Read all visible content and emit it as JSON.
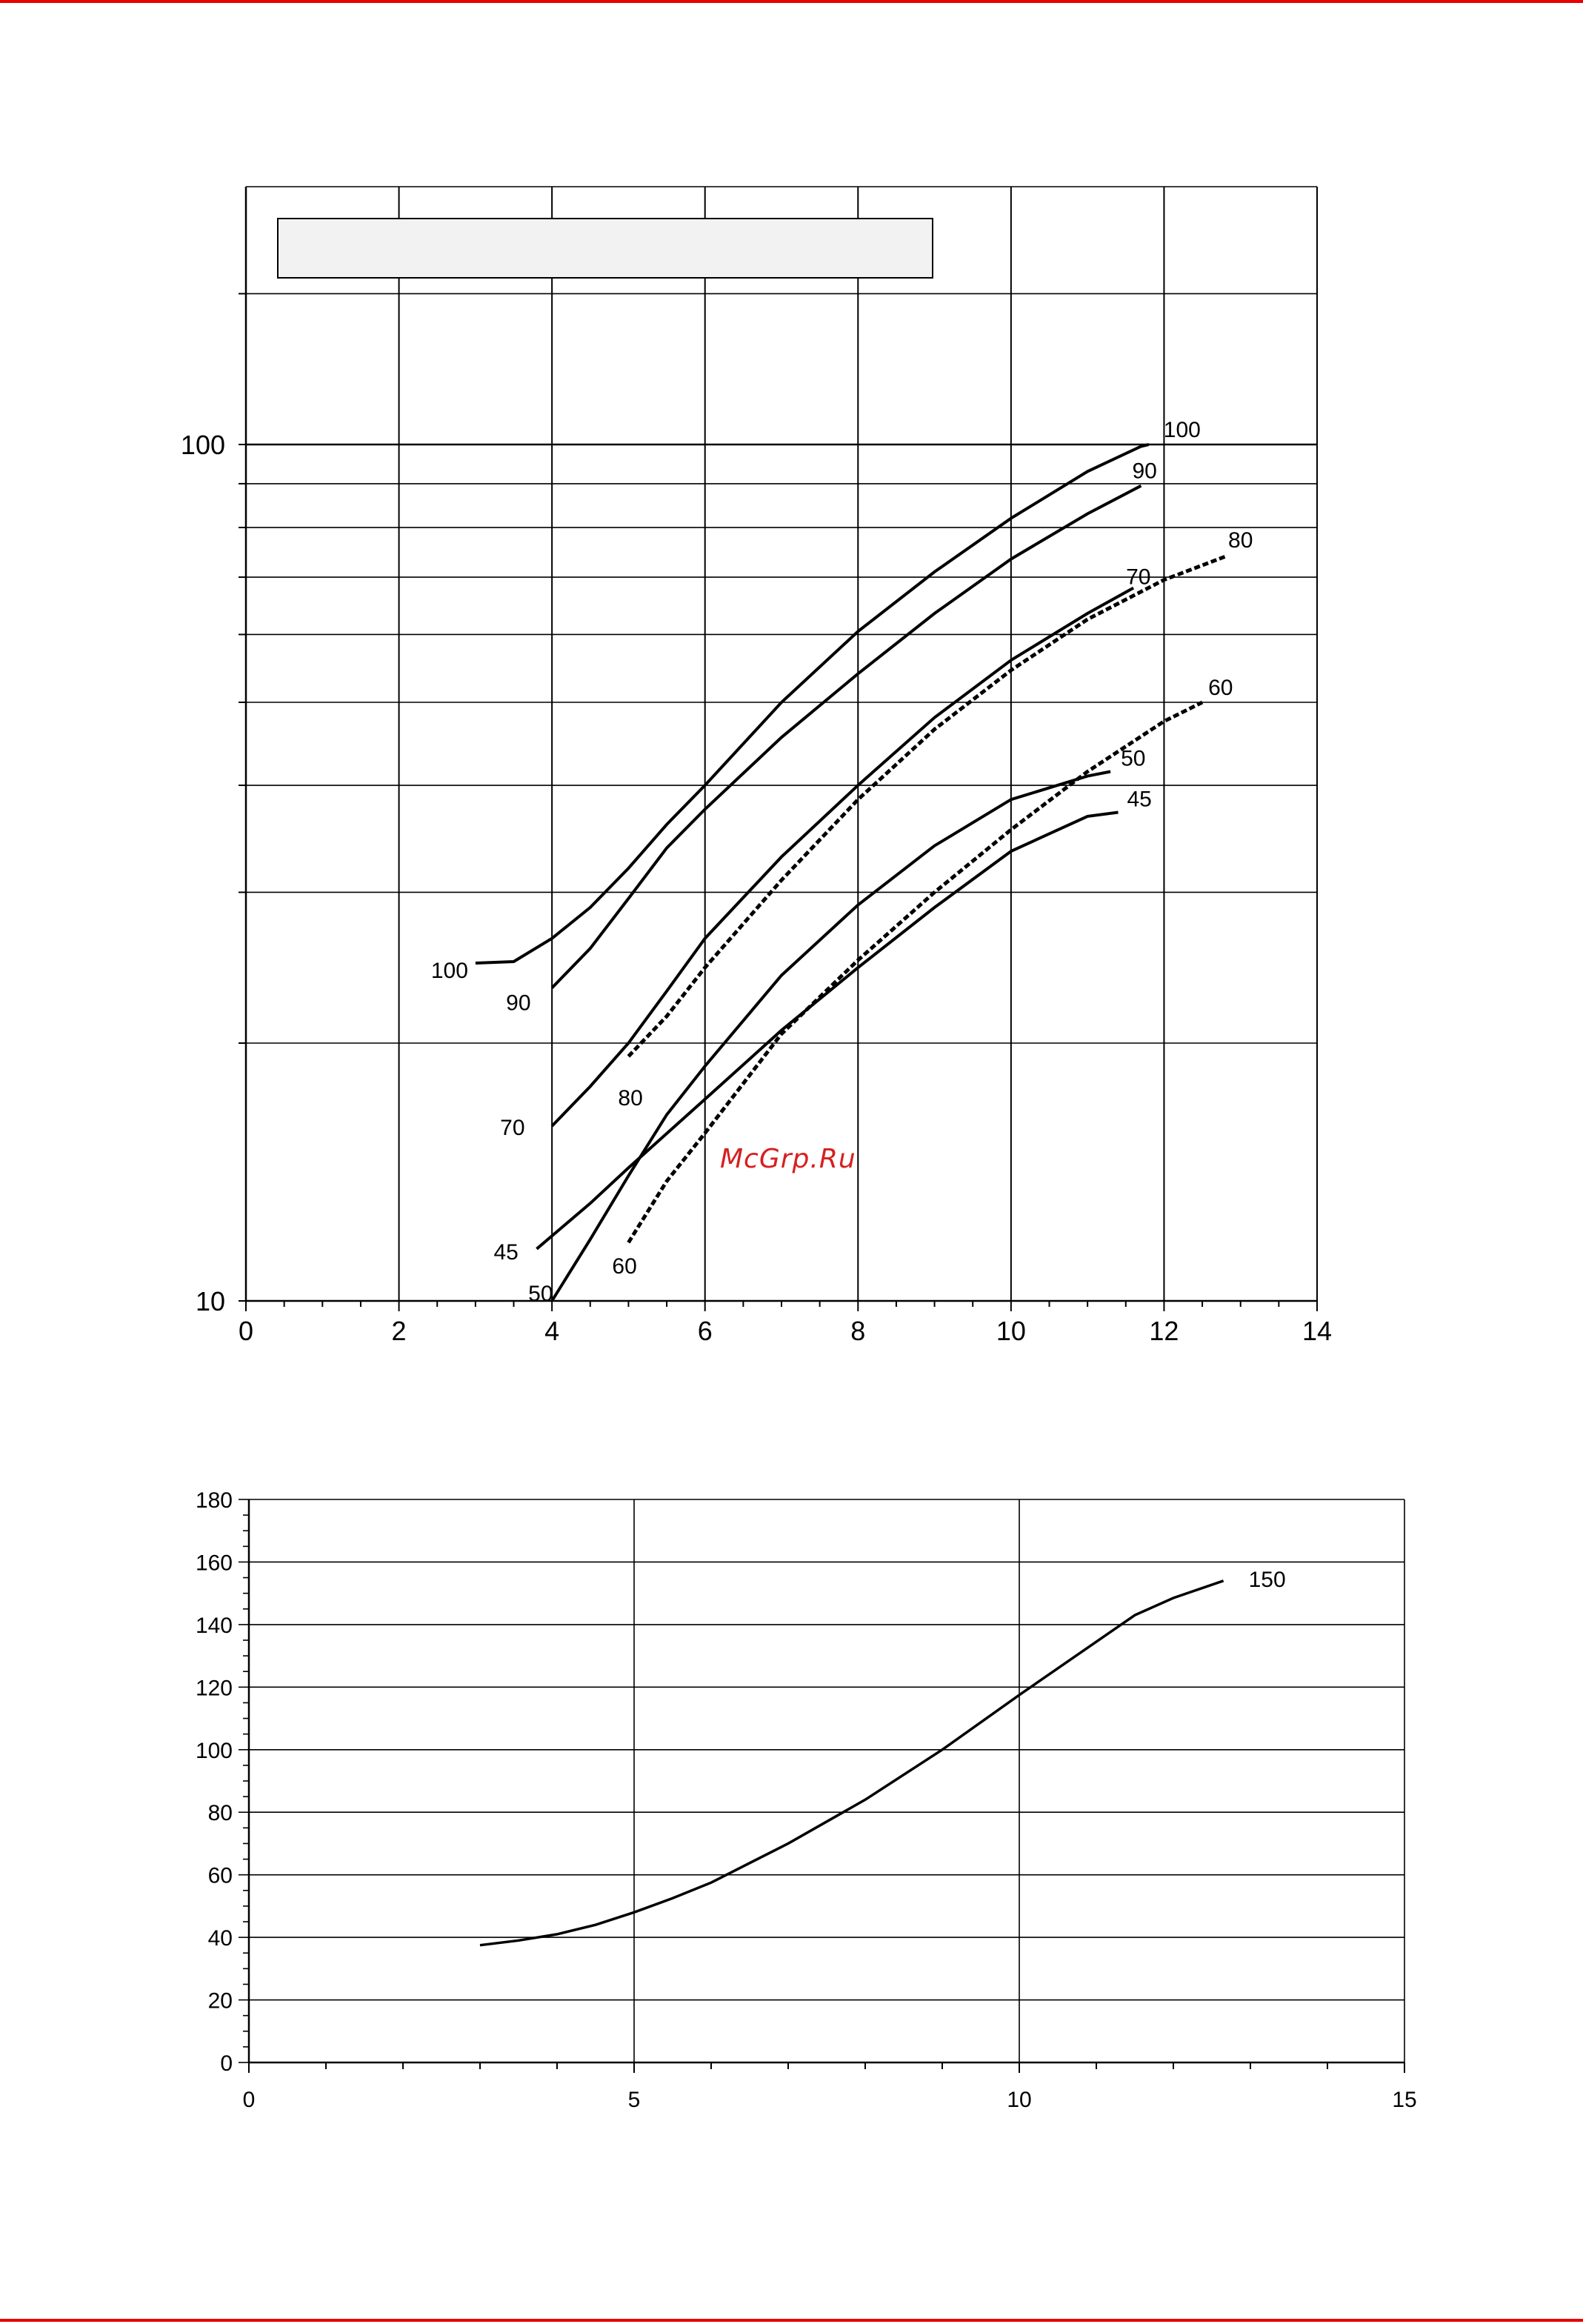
{
  "page": {
    "rule_color": "#e60000",
    "watermark": "McGrp.Ru",
    "watermark_color": "#d62020"
  },
  "chart_data": [
    {
      "type": "line",
      "yscale": "log",
      "xlim": [
        0,
        14
      ],
      "ylim": [
        10,
        180
      ],
      "xticks": [
        "0",
        "2",
        "4",
        "6",
        "8",
        "10",
        "12",
        "14"
      ],
      "yticks": [
        "10",
        "100"
      ],
      "legend_box_text": "",
      "series": [
        {
          "name": "100",
          "style": "solid",
          "points": [
            [
              3.0,
              24.8
            ],
            [
              3.5,
              24.9
            ],
            [
              4.0,
              26.5
            ],
            [
              4.5,
              28.8
            ],
            [
              5.0,
              32.0
            ],
            [
              5.5,
              36.0
            ],
            [
              6.0,
              40.0
            ],
            [
              7.0,
              50.0
            ],
            [
              8.0,
              60.5
            ],
            [
              9.0,
              71.0
            ],
            [
              10.0,
              82.0
            ],
            [
              11.0,
              93.0
            ],
            [
              11.7,
              99.5
            ],
            [
              11.8,
              100.0
            ]
          ]
        },
        {
          "name": "90",
          "style": "solid",
          "points": [
            [
              4.0,
              23.2
            ],
            [
              4.5,
              25.8
            ],
            [
              5.0,
              29.5
            ],
            [
              5.5,
              33.8
            ],
            [
              6.0,
              37.5
            ],
            [
              7.0,
              45.5
            ],
            [
              8.0,
              54.0
            ],
            [
              9.0,
              63.5
            ],
            [
              10.0,
              73.5
            ],
            [
              11.0,
              83.0
            ],
            [
              11.7,
              89.5
            ]
          ]
        },
        {
          "name": "70",
          "style": "solid",
          "points": [
            [
              4.0,
              16.0
            ],
            [
              4.5,
              17.8
            ],
            [
              5.0,
              20.0
            ],
            [
              5.5,
              23.0
            ],
            [
              6.0,
              26.5
            ],
            [
              7.0,
              33.0
            ],
            [
              8.0,
              40.0
            ],
            [
              9.0,
              48.0
            ],
            [
              10.0,
              56.0
            ],
            [
              11.0,
              63.5
            ],
            [
              11.6,
              68.0
            ]
          ]
        },
        {
          "name": "80",
          "style": "dashed",
          "points": [
            [
              5.0,
              19.3
            ],
            [
              5.5,
              21.5
            ],
            [
              6.0,
              24.5
            ],
            [
              7.0,
              31.0
            ],
            [
              8.0,
              38.5
            ],
            [
              9.0,
              46.5
            ],
            [
              10.0,
              54.5
            ],
            [
              11.0,
              62.5
            ],
            [
              12.0,
              69.5
            ],
            [
              12.8,
              74.0
            ]
          ]
        },
        {
          "name": "60",
          "style": "dashed",
          "points": [
            [
              5.0,
              11.7
            ],
            [
              5.5,
              13.8
            ],
            [
              6.0,
              15.7
            ],
            [
              7.0,
              20.5
            ],
            [
              8.0,
              25.0
            ],
            [
              9.0,
              30.0
            ],
            [
              10.0,
              35.5
            ],
            [
              11.0,
              41.5
            ],
            [
              12.0,
              47.5
            ],
            [
              12.5,
              50.0
            ]
          ]
        },
        {
          "name": "50",
          "style": "solid",
          "points": [
            [
              4.0,
              10.0
            ],
            [
              4.5,
              11.8
            ],
            [
              5.0,
              14.0
            ],
            [
              5.5,
              16.5
            ],
            [
              6.0,
              18.8
            ],
            [
              7.0,
              24.0
            ],
            [
              8.0,
              29.0
            ],
            [
              9.0,
              34.0
            ],
            [
              10.0,
              38.5
            ],
            [
              11.0,
              41.0
            ],
            [
              11.3,
              41.5
            ]
          ]
        },
        {
          "name": "45",
          "style": "solid",
          "points": [
            [
              3.8,
              11.5
            ],
            [
              4.5,
              13.0
            ],
            [
              5.0,
              14.3
            ],
            [
              6.0,
              17.2
            ],
            [
              7.0,
              20.7
            ],
            [
              8.0,
              24.5
            ],
            [
              9.0,
              28.8
            ],
            [
              10.0,
              33.5
            ],
            [
              11.0,
              36.8
            ],
            [
              11.4,
              37.2
            ]
          ]
        }
      ],
      "grid": true
    },
    {
      "type": "line",
      "xlim": [
        0,
        15
      ],
      "ylim": [
        0,
        180
      ],
      "xticks": [
        "0",
        "5",
        "10",
        "15"
      ],
      "yticks": [
        "0",
        "20",
        "40",
        "60",
        "80",
        "100",
        "120",
        "140",
        "160",
        "180"
      ],
      "series": [
        {
          "name": "150",
          "points": [
            [
              3.0,
              37.5
            ],
            [
              3.5,
              39.0
            ],
            [
              4.0,
              41.0
            ],
            [
              4.5,
              44.0
            ],
            [
              5.0,
              48.0
            ],
            [
              5.5,
              52.5
            ],
            [
              6.0,
              57.5
            ],
            [
              7.0,
              70.0
            ],
            [
              8.0,
              84.0
            ],
            [
              9.0,
              100.0
            ],
            [
              10.0,
              117.5
            ],
            [
              11.0,
              134.5
            ],
            [
              11.5,
              143.0
            ],
            [
              12.0,
              148.5
            ],
            [
              12.65,
              154.0
            ]
          ]
        }
      ],
      "grid": true
    }
  ]
}
